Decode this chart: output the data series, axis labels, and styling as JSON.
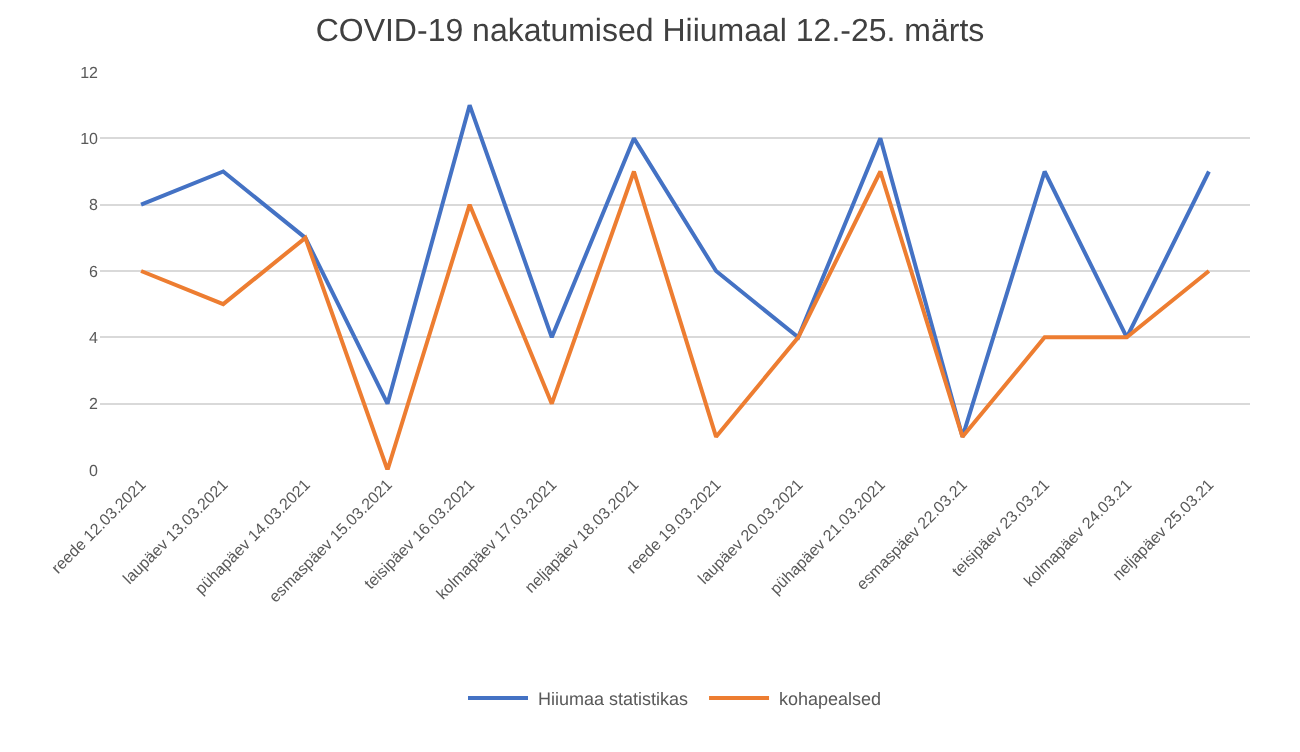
{
  "chart_data": {
    "type": "line",
    "title": "COVID-19 nakatumised Hiiumaal 12.-25. märts",
    "categories": [
      "reede 12.03.2021",
      "laupäev 13.03.2021",
      "pühapäev 14.03.2021",
      "esmaspäev 15.03.2021",
      "teisipäev 16.03.2021",
      "kolmapäev 17.03.2021",
      "neljapäev 18.03.2021",
      "reede 19.03.2021",
      "laupäev 20.03.2021",
      "pühapäev 21.03.2021",
      "esmaspäev 22.03.21",
      "teisipäev 23.03.21",
      "kolmapäev 24.03.21",
      "neljapäev 25.03.21"
    ],
    "series": [
      {
        "name": "Hiiumaa statistikas",
        "color": "#4472c4",
        "values": [
          8,
          9,
          7,
          2,
          11,
          4,
          10,
          6,
          4,
          10,
          1,
          9,
          4,
          9
        ]
      },
      {
        "name": "kohapealsed",
        "color": "#ed7d31",
        "values": [
          6,
          5,
          7,
          0,
          8,
          2,
          9,
          1,
          4,
          9,
          1,
          4,
          4,
          6
        ]
      }
    ],
    "ylim": [
      0,
      12
    ],
    "yticks": [
      0,
      2,
      4,
      6,
      8,
      10,
      12
    ],
    "grid": "y",
    "legend": "bottom",
    "marker": "none",
    "line_style": "solid"
  }
}
